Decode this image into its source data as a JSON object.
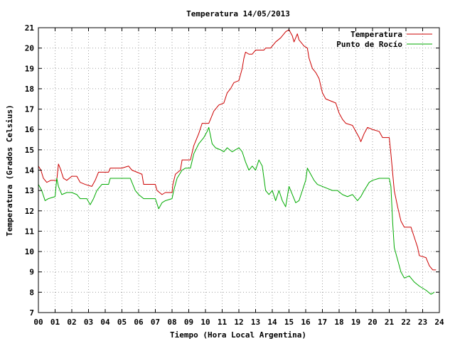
{
  "chart_data": {
    "type": "line",
    "title": "Temperatura 14/05/2013",
    "xlabel": "Tiempo (Hora Local Argentina)",
    "ylabel": "Temperatura (Grados Celsius)",
    "xlim": [
      0,
      24
    ],
    "ylim": [
      7,
      21
    ],
    "x_ticks": [
      "00",
      "01",
      "02",
      "03",
      "04",
      "05",
      "06",
      "07",
      "08",
      "09",
      "10",
      "11",
      "12",
      "13",
      "14",
      "15",
      "16",
      "17",
      "18",
      "19",
      "20",
      "21",
      "22",
      "23",
      "24"
    ],
    "y_ticks": [
      "7",
      "8",
      "9",
      "10",
      "11",
      "12",
      "13",
      "14",
      "15",
      "16",
      "17",
      "18",
      "19",
      "20",
      "21"
    ],
    "grid": true,
    "legend_position": "top-right",
    "series": [
      {
        "name": "Temperatura",
        "color": "#cc0000",
        "points": [
          [
            0.0,
            14.2
          ],
          [
            0.15,
            14.0
          ],
          [
            0.3,
            13.6
          ],
          [
            0.5,
            13.4
          ],
          [
            0.75,
            13.5
          ],
          [
            1.1,
            13.5
          ],
          [
            1.2,
            14.3
          ],
          [
            1.3,
            14.1
          ],
          [
            1.5,
            13.6
          ],
          [
            1.7,
            13.5
          ],
          [
            2.0,
            13.7
          ],
          [
            2.3,
            13.7
          ],
          [
            2.5,
            13.4
          ],
          [
            2.8,
            13.3
          ],
          [
            3.2,
            13.2
          ],
          [
            3.4,
            13.5
          ],
          [
            3.6,
            13.9
          ],
          [
            4.2,
            13.9
          ],
          [
            4.3,
            14.1
          ],
          [
            5.0,
            14.1
          ],
          [
            5.4,
            14.2
          ],
          [
            5.6,
            14.0
          ],
          [
            5.9,
            13.9
          ],
          [
            6.2,
            13.8
          ],
          [
            6.3,
            13.3
          ],
          [
            7.0,
            13.3
          ],
          [
            7.1,
            13.0
          ],
          [
            7.4,
            12.8
          ],
          [
            7.6,
            12.9
          ],
          [
            8.0,
            12.9
          ],
          [
            8.05,
            13.3
          ],
          [
            8.2,
            13.8
          ],
          [
            8.5,
            14.0
          ],
          [
            8.6,
            14.5
          ],
          [
            8.9,
            14.5
          ],
          [
            9.1,
            14.5
          ],
          [
            9.3,
            15.2
          ],
          [
            9.6,
            15.8
          ],
          [
            9.8,
            16.3
          ],
          [
            10.2,
            16.3
          ],
          [
            10.3,
            16.5
          ],
          [
            10.5,
            16.9
          ],
          [
            10.8,
            17.2
          ],
          [
            11.1,
            17.3
          ],
          [
            11.3,
            17.8
          ],
          [
            11.5,
            18.0
          ],
          [
            11.7,
            18.3
          ],
          [
            12.0,
            18.4
          ],
          [
            12.2,
            19.0
          ],
          [
            12.3,
            19.5
          ],
          [
            12.4,
            19.8
          ],
          [
            12.6,
            19.7
          ],
          [
            12.8,
            19.7
          ],
          [
            13.0,
            19.9
          ],
          [
            13.5,
            19.9
          ],
          [
            13.6,
            20.0
          ],
          [
            13.9,
            20.0
          ],
          [
            14.0,
            20.1
          ],
          [
            14.2,
            20.3
          ],
          [
            14.5,
            20.5
          ],
          [
            14.8,
            20.8
          ],
          [
            15.0,
            20.9
          ],
          [
            15.2,
            20.6
          ],
          [
            15.3,
            20.3
          ],
          [
            15.5,
            20.7
          ],
          [
            15.6,
            20.4
          ],
          [
            15.9,
            20.1
          ],
          [
            16.1,
            20.0
          ],
          [
            16.2,
            19.5
          ],
          [
            16.4,
            19.0
          ],
          [
            16.6,
            18.8
          ],
          [
            16.8,
            18.5
          ],
          [
            17.0,
            17.8
          ],
          [
            17.2,
            17.5
          ],
          [
            17.5,
            17.4
          ],
          [
            17.8,
            17.3
          ],
          [
            18.0,
            16.8
          ],
          [
            18.2,
            16.5
          ],
          [
            18.4,
            16.3
          ],
          [
            18.8,
            16.2
          ],
          [
            19.2,
            15.6
          ],
          [
            19.3,
            15.4
          ],
          [
            19.5,
            15.8
          ],
          [
            19.7,
            16.1
          ],
          [
            20.0,
            16.0
          ],
          [
            20.4,
            15.9
          ],
          [
            20.6,
            15.6
          ],
          [
            21.0,
            15.6
          ],
          [
            21.1,
            14.8
          ],
          [
            21.3,
            13.0
          ],
          [
            21.5,
            12.2
          ],
          [
            21.7,
            11.5
          ],
          [
            21.9,
            11.2
          ],
          [
            22.3,
            11.2
          ],
          [
            22.5,
            10.7
          ],
          [
            22.7,
            10.2
          ],
          [
            22.8,
            9.8
          ],
          [
            23.2,
            9.7
          ],
          [
            23.4,
            9.3
          ],
          [
            23.6,
            9.1
          ],
          [
            23.8,
            9.1
          ]
        ]
      },
      {
        "name": "Punto de Rocío",
        "color": "#00aa00",
        "points": [
          [
            0.0,
            13.3
          ],
          [
            0.2,
            13.0
          ],
          [
            0.4,
            12.5
          ],
          [
            0.6,
            12.6
          ],
          [
            1.0,
            12.7
          ],
          [
            1.1,
            13.6
          ],
          [
            1.2,
            13.2
          ],
          [
            1.4,
            12.8
          ],
          [
            1.7,
            12.9
          ],
          [
            2.0,
            12.9
          ],
          [
            2.3,
            12.8
          ],
          [
            2.5,
            12.6
          ],
          [
            2.9,
            12.6
          ],
          [
            3.1,
            12.3
          ],
          [
            3.3,
            12.6
          ],
          [
            3.5,
            13.0
          ],
          [
            3.8,
            13.3
          ],
          [
            4.2,
            13.3
          ],
          [
            4.3,
            13.6
          ],
          [
            5.0,
            13.6
          ],
          [
            5.5,
            13.6
          ],
          [
            5.6,
            13.4
          ],
          [
            5.8,
            13.0
          ],
          [
            6.0,
            12.8
          ],
          [
            6.3,
            12.6
          ],
          [
            7.0,
            12.6
          ],
          [
            7.2,
            12.1
          ],
          [
            7.4,
            12.4
          ],
          [
            7.6,
            12.5
          ],
          [
            8.0,
            12.6
          ],
          [
            8.1,
            13.0
          ],
          [
            8.3,
            13.6
          ],
          [
            8.6,
            14.0
          ],
          [
            8.8,
            14.1
          ],
          [
            9.1,
            14.1
          ],
          [
            9.3,
            14.8
          ],
          [
            9.6,
            15.3
          ],
          [
            9.9,
            15.6
          ],
          [
            10.1,
            15.9
          ],
          [
            10.2,
            16.1
          ],
          [
            10.4,
            15.3
          ],
          [
            10.6,
            15.1
          ],
          [
            10.9,
            15.0
          ],
          [
            11.1,
            14.9
          ],
          [
            11.3,
            15.1
          ],
          [
            11.6,
            14.9
          ],
          [
            11.8,
            15.0
          ],
          [
            12.0,
            15.1
          ],
          [
            12.2,
            14.9
          ],
          [
            12.4,
            14.4
          ],
          [
            12.6,
            14.0
          ],
          [
            12.8,
            14.2
          ],
          [
            13.0,
            14.0
          ],
          [
            13.2,
            14.5
          ],
          [
            13.4,
            14.2
          ],
          [
            13.6,
            13.0
          ],
          [
            13.8,
            12.8
          ],
          [
            14.0,
            13.0
          ],
          [
            14.2,
            12.5
          ],
          [
            14.4,
            13.0
          ],
          [
            14.6,
            12.5
          ],
          [
            14.8,
            12.2
          ],
          [
            15.0,
            13.2
          ],
          [
            15.2,
            12.8
          ],
          [
            15.4,
            12.4
          ],
          [
            15.6,
            12.5
          ],
          [
            15.8,
            13.0
          ],
          [
            16.0,
            13.5
          ],
          [
            16.1,
            14.1
          ],
          [
            16.3,
            13.8
          ],
          [
            16.5,
            13.5
          ],
          [
            16.7,
            13.3
          ],
          [
            17.0,
            13.2
          ],
          [
            17.3,
            13.1
          ],
          [
            17.6,
            13.0
          ],
          [
            17.9,
            13.0
          ],
          [
            18.2,
            12.8
          ],
          [
            18.5,
            12.7
          ],
          [
            18.8,
            12.8
          ],
          [
            19.1,
            12.5
          ],
          [
            19.3,
            12.7
          ],
          [
            19.5,
            13.0
          ],
          [
            19.8,
            13.4
          ],
          [
            20.0,
            13.5
          ],
          [
            20.4,
            13.6
          ],
          [
            21.0,
            13.6
          ],
          [
            21.1,
            13.2
          ],
          [
            21.2,
            11.5
          ],
          [
            21.3,
            10.2
          ],
          [
            21.5,
            9.6
          ],
          [
            21.7,
            9.0
          ],
          [
            21.9,
            8.7
          ],
          [
            22.2,
            8.8
          ],
          [
            22.5,
            8.5
          ],
          [
            22.8,
            8.3
          ],
          [
            23.0,
            8.2
          ],
          [
            23.2,
            8.1
          ],
          [
            23.5,
            7.9
          ],
          [
            23.7,
            8.0
          ]
        ]
      }
    ]
  }
}
